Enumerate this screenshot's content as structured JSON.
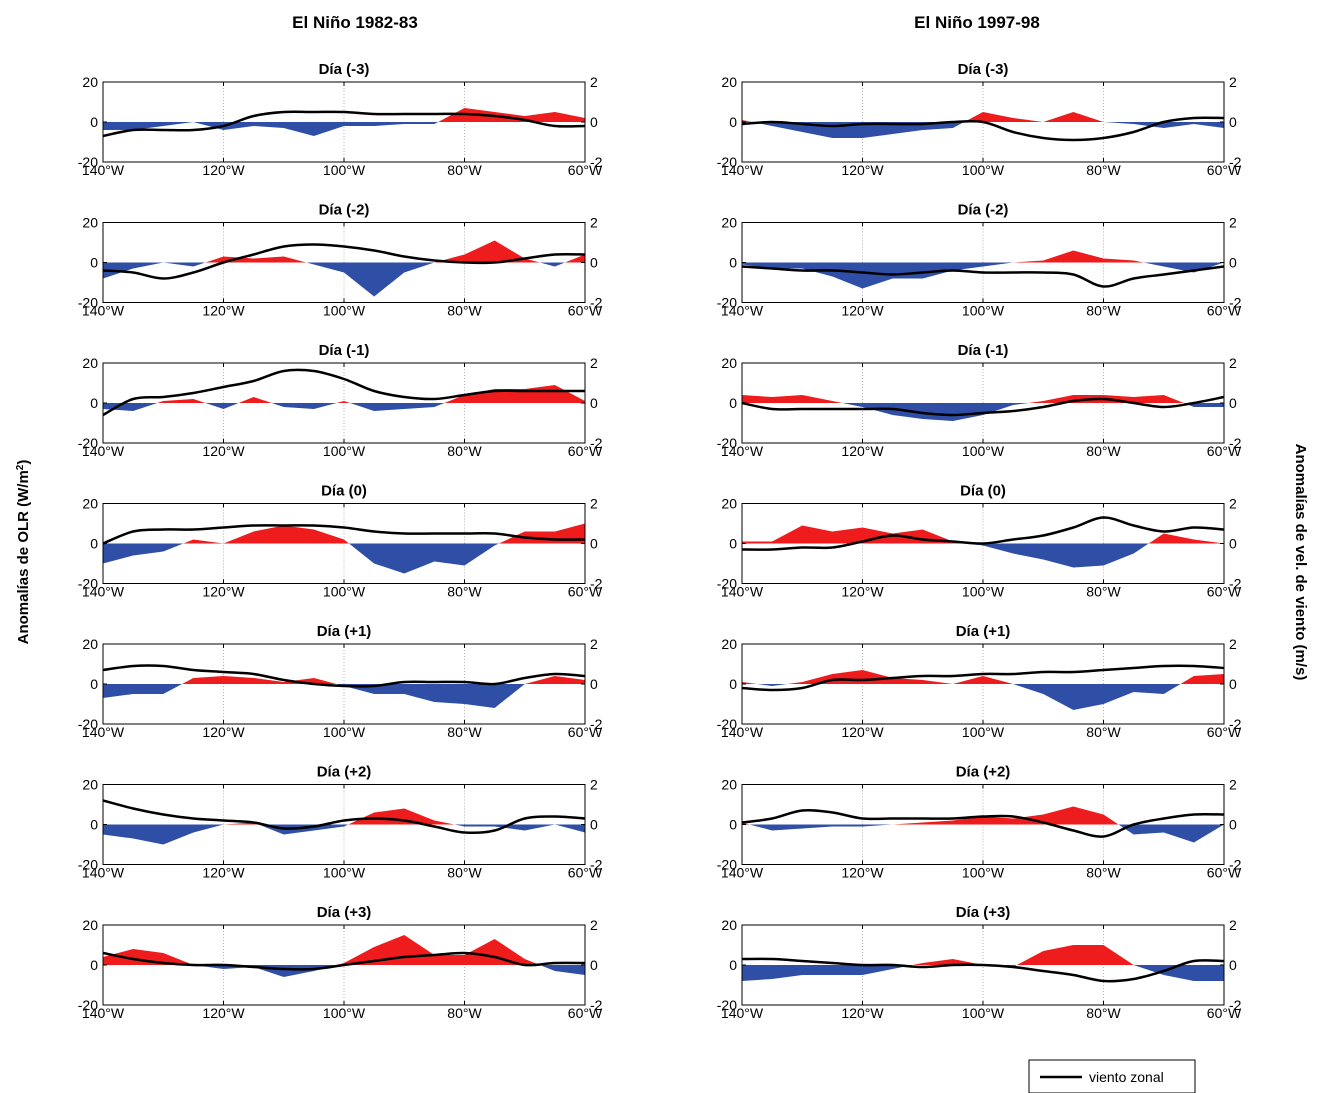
{
  "figure": {
    "left_column_title": "El Niño 1982-83",
    "right_column_title": "El Niño 1997-98",
    "left_axis_label": "Anomalías de OLR (W/m²)",
    "right_axis_label": "Anomalías de vel. de viento (m/s)",
    "legend_label": "viento zonal"
  },
  "colors": {
    "positive": "#ee1c1c",
    "negative": "#2f4ea6",
    "wind": "#000000"
  },
  "chart_data": [
    {
      "type": "area",
      "column": "El Niño 1982-83",
      "title": "Día (-3)",
      "xlim": [
        -140,
        -60
      ],
      "ylim": [
        -20,
        20
      ],
      "y2lim": [
        -2,
        2
      ],
      "xticks": [
        "140°W",
        "120°W",
        "100°W",
        "80°W",
        "60°W"
      ],
      "yticks": [
        "-20",
        "0",
        "20"
      ],
      "y2ticks": [
        "-2",
        "0",
        "2"
      ],
      "x": [
        -140,
        -135,
        -130,
        -125,
        -120,
        -115,
        -110,
        -105,
        -100,
        -95,
        -90,
        -85,
        -80,
        -75,
        -70,
        -65,
        -60
      ],
      "olr": [
        -4,
        -4,
        -2,
        0,
        -4,
        -2,
        -3,
        -7,
        -2,
        -2,
        -1,
        -1,
        7,
        5,
        3,
        5,
        2
      ],
      "wind": [
        -0.7,
        -0.4,
        -0.4,
        -0.4,
        -0.2,
        0.3,
        0.5,
        0.5,
        0.5,
        0.4,
        0.4,
        0.4,
        0.4,
        0.3,
        0.1,
        -0.2,
        -0.2
      ]
    },
    {
      "type": "area",
      "column": "El Niño 1982-83",
      "title": "Día (-2)",
      "xlim": [
        -140,
        -60
      ],
      "ylim": [
        -20,
        20
      ],
      "y2lim": [
        -2,
        2
      ],
      "xticks": [
        "140°W",
        "120°W",
        "100°W",
        "80°W",
        "60°W"
      ],
      "yticks": [
        "-20",
        "0",
        "20"
      ],
      "y2ticks": [
        "-2",
        "0",
        "2"
      ],
      "x": [
        -140,
        -135,
        -130,
        -125,
        -120,
        -115,
        -110,
        -105,
        -100,
        -95,
        -90,
        -85,
        -80,
        -75,
        -70,
        -65,
        -60
      ],
      "olr": [
        -8,
        -3,
        0,
        -2,
        3,
        2,
        3,
        -1,
        -5,
        -17,
        -5,
        0,
        4,
        11,
        2,
        -2,
        4
      ],
      "wind": [
        -0.4,
        -0.5,
        -0.8,
        -0.5,
        0.0,
        0.4,
        0.8,
        0.9,
        0.8,
        0.6,
        0.3,
        0.1,
        0.0,
        0.0,
        0.2,
        0.4,
        0.4
      ]
    },
    {
      "type": "area",
      "column": "El Niño 1982-83",
      "title": "Día (-1)",
      "xlim": [
        -140,
        -60
      ],
      "ylim": [
        -20,
        20
      ],
      "y2lim": [
        -2,
        2
      ],
      "xticks": [
        "140°W",
        "120°W",
        "100°W",
        "80°W",
        "60°W"
      ],
      "yticks": [
        "-20",
        "0",
        "20"
      ],
      "y2ticks": [
        "-2",
        "0",
        "2"
      ],
      "x": [
        -140,
        -135,
        -130,
        -125,
        -120,
        -115,
        -110,
        -105,
        -100,
        -95,
        -90,
        -85,
        -80,
        -75,
        -70,
        -65,
        -60
      ],
      "olr": [
        -3,
        -4,
        1,
        2,
        -3,
        3,
        -2,
        -3,
        1,
        -4,
        -3,
        -2,
        4,
        7,
        7,
        9,
        1
      ],
      "wind": [
        -0.6,
        0.2,
        0.3,
        0.5,
        0.8,
        1.1,
        1.6,
        1.6,
        1.2,
        0.6,
        0.3,
        0.2,
        0.4,
        0.6,
        0.6,
        0.6,
        0.6
      ]
    },
    {
      "type": "area",
      "column": "El Niño 1982-83",
      "title": "Día (0)",
      "xlim": [
        -140,
        -60
      ],
      "ylim": [
        -20,
        20
      ],
      "y2lim": [
        -2,
        2
      ],
      "xticks": [
        "140°W",
        "120°W",
        "100°W",
        "80°W",
        "60°W"
      ],
      "yticks": [
        "-20",
        "0",
        "20"
      ],
      "y2ticks": [
        "-2",
        "0",
        "2"
      ],
      "x": [
        -140,
        -135,
        -130,
        -125,
        -120,
        -115,
        -110,
        -105,
        -100,
        -95,
        -90,
        -85,
        -80,
        -75,
        -70,
        -65,
        -60
      ],
      "olr": [
        -10,
        -6,
        -4,
        2,
        0,
        6,
        9,
        7,
        2,
        -10,
        -15,
        -9,
        -11,
        -1,
        6,
        6,
        10
      ],
      "wind": [
        0.0,
        0.6,
        0.7,
        0.7,
        0.8,
        0.9,
        0.9,
        0.9,
        0.8,
        0.6,
        0.5,
        0.5,
        0.5,
        0.5,
        0.3,
        0.2,
        0.2
      ]
    },
    {
      "type": "area",
      "column": "El Niño 1982-83",
      "title": "Día (+1)",
      "xlim": [
        -140,
        -60
      ],
      "ylim": [
        -20,
        20
      ],
      "y2lim": [
        -2,
        2
      ],
      "xticks": [
        "140°W",
        "120°W",
        "100°W",
        "80°W",
        "60°W"
      ],
      "yticks": [
        "-20",
        "0",
        "20"
      ],
      "y2ticks": [
        "-2",
        "0",
        "2"
      ],
      "x": [
        -140,
        -135,
        -130,
        -125,
        -120,
        -115,
        -110,
        -105,
        -100,
        -95,
        -90,
        -85,
        -80,
        -75,
        -70,
        -65,
        -60
      ],
      "olr": [
        -7,
        -5,
        -5,
        3,
        4,
        3,
        1,
        3,
        -1,
        -5,
        -5,
        -9,
        -10,
        -12,
        0,
        4,
        2
      ],
      "wind": [
        0.7,
        0.9,
        0.9,
        0.7,
        0.6,
        0.5,
        0.2,
        0.0,
        -0.1,
        -0.1,
        0.1,
        0.1,
        0.1,
        0.0,
        0.3,
        0.5,
        0.4
      ]
    },
    {
      "type": "area",
      "column": "El Niño 1982-83",
      "title": "Día (+2)",
      "xlim": [
        -140,
        -60
      ],
      "ylim": [
        -20,
        20
      ],
      "y2lim": [
        -2,
        2
      ],
      "xticks": [
        "140°W",
        "120°W",
        "100°W",
        "80°W",
        "60°W"
      ],
      "yticks": [
        "-20",
        "0",
        "20"
      ],
      "y2ticks": [
        "-2",
        "0",
        "2"
      ],
      "x": [
        -140,
        -135,
        -130,
        -125,
        -120,
        -115,
        -110,
        -105,
        -100,
        -95,
        -90,
        -85,
        -80,
        -75,
        -70,
        -65,
        -60
      ],
      "olr": [
        -5,
        -7,
        -10,
        -4,
        0,
        1,
        -5,
        -3,
        -1,
        6,
        8,
        2,
        -1,
        -1,
        -3,
        0,
        -4
      ],
      "wind": [
        1.2,
        0.8,
        0.5,
        0.3,
        0.2,
        0.1,
        -0.2,
        -0.1,
        0.2,
        0.3,
        0.2,
        -0.1,
        -0.4,
        -0.3,
        0.3,
        0.4,
        0.3
      ]
    },
    {
      "type": "area",
      "column": "El Niño 1982-83",
      "title": "Día (+3)",
      "xlim": [
        -140,
        -60
      ],
      "ylim": [
        -20,
        20
      ],
      "y2lim": [
        -2,
        2
      ],
      "xticks": [
        "140°W",
        "120°W",
        "100°W",
        "80°W",
        "60°W"
      ],
      "yticks": [
        "-20",
        "0",
        "20"
      ],
      "y2ticks": [
        "-2",
        "0",
        "2"
      ],
      "x": [
        -140,
        -135,
        -130,
        -125,
        -120,
        -115,
        -110,
        -105,
        -100,
        -95,
        -90,
        -85,
        -80,
        -75,
        -70,
        -65,
        -60
      ],
      "olr": [
        4,
        8,
        6,
        0,
        -2,
        -1,
        -6,
        -3,
        1,
        9,
        15,
        5,
        5,
        13,
        3,
        -3,
        -5
      ],
      "wind": [
        0.6,
        0.3,
        0.1,
        0.0,
        0.0,
        -0.1,
        -0.2,
        -0.2,
        0.0,
        0.2,
        0.4,
        0.5,
        0.6,
        0.4,
        0.0,
        0.1,
        0.1
      ]
    },
    {
      "type": "area",
      "column": "El Niño 1997-98",
      "title": "Día (-3)",
      "xlim": [
        -140,
        -60
      ],
      "ylim": [
        -20,
        20
      ],
      "y2lim": [
        -2,
        2
      ],
      "xticks": [
        "140°W",
        "120°W",
        "100°W",
        "80°W",
        "60°W"
      ],
      "yticks": [
        "-20",
        "0",
        "20"
      ],
      "y2ticks": [
        "-2",
        "0",
        "2"
      ],
      "x": [
        -140,
        -135,
        -130,
        -125,
        -120,
        -115,
        -110,
        -105,
        -100,
        -95,
        -90,
        -85,
        -80,
        -75,
        -70,
        -65,
        -60
      ],
      "olr": [
        1,
        -2,
        -5,
        -8,
        -8,
        -6,
        -4,
        -3,
        5,
        2,
        0,
        5,
        0,
        -1,
        -3,
        -1,
        -3
      ],
      "wind": [
        -0.1,
        0.0,
        -0.1,
        -0.2,
        -0.1,
        -0.1,
        -0.1,
        0.0,
        0.0,
        -0.5,
        -0.8,
        -0.9,
        -0.8,
        -0.5,
        0.0,
        0.2,
        0.2
      ]
    },
    {
      "type": "area",
      "column": "El Niño 1997-98",
      "title": "Día (-2)",
      "xlim": [
        -140,
        -60
      ],
      "ylim": [
        -20,
        20
      ],
      "y2lim": [
        -2,
        2
      ],
      "xticks": [
        "140°W",
        "120°W",
        "100°W",
        "80°W",
        "60°W"
      ],
      "yticks": [
        "-20",
        "0",
        "20"
      ],
      "y2ticks": [
        "-2",
        "0",
        "2"
      ],
      "x": [
        -140,
        -135,
        -130,
        -125,
        -120,
        -115,
        -110,
        -105,
        -100,
        -95,
        -90,
        -85,
        -80,
        -75,
        -70,
        -65,
        -60
      ],
      "olr": [
        -1,
        -3,
        -3,
        -7,
        -13,
        -8,
        -8,
        -4,
        -2,
        0,
        1,
        6,
        2,
        1,
        -2,
        -5,
        0
      ],
      "wind": [
        -0.2,
        -0.3,
        -0.4,
        -0.4,
        -0.5,
        -0.6,
        -0.5,
        -0.4,
        -0.5,
        -0.5,
        -0.5,
        -0.6,
        -1.2,
        -0.8,
        -0.6,
        -0.4,
        -0.2
      ]
    },
    {
      "type": "area",
      "column": "El Niño 1997-98",
      "title": "Día (-1)",
      "xlim": [
        -140,
        -60
      ],
      "ylim": [
        -20,
        20
      ],
      "y2lim": [
        -2,
        2
      ],
      "xticks": [
        "140°W",
        "120°W",
        "100°W",
        "80°W",
        "60°W"
      ],
      "yticks": [
        "-20",
        "0",
        "20"
      ],
      "y2ticks": [
        "-2",
        "0",
        "2"
      ],
      "x": [
        -140,
        -135,
        -130,
        -125,
        -120,
        -115,
        -110,
        -105,
        -100,
        -95,
        -90,
        -85,
        -80,
        -75,
        -70,
        -65,
        -60
      ],
      "olr": [
        4,
        3,
        4,
        1,
        -2,
        -6,
        -8,
        -9,
        -6,
        -1,
        1,
        4,
        4,
        3,
        4,
        -2,
        -2
      ],
      "wind": [
        0.0,
        -0.3,
        -0.3,
        -0.3,
        -0.3,
        -0.3,
        -0.5,
        -0.6,
        -0.5,
        -0.4,
        -0.2,
        0.1,
        0.2,
        0.0,
        -0.2,
        0.0,
        0.3
      ]
    },
    {
      "type": "area",
      "column": "El Niño 1997-98",
      "title": "Día (0)",
      "xlim": [
        -140,
        -60
      ],
      "ylim": [
        -20,
        20
      ],
      "y2lim": [
        -2,
        2
      ],
      "xticks": [
        "140°W",
        "120°W",
        "100°W",
        "80°W",
        "60°W"
      ],
      "yticks": [
        "-20",
        "0",
        "20"
      ],
      "y2ticks": [
        "-2",
        "0",
        "2"
      ],
      "x": [
        -140,
        -135,
        -130,
        -125,
        -120,
        -115,
        -110,
        -105,
        -100,
        -95,
        -90,
        -85,
        -80,
        -75,
        -70,
        -65,
        -60
      ],
      "olr": [
        1,
        1,
        9,
        6,
        8,
        5,
        7,
        1,
        -1,
        -5,
        -8,
        -12,
        -11,
        -5,
        5,
        2,
        0
      ],
      "wind": [
        -0.3,
        -0.3,
        -0.2,
        -0.2,
        0.1,
        0.4,
        0.2,
        0.1,
        0.0,
        0.2,
        0.4,
        0.8,
        1.3,
        0.9,
        0.6,
        0.8,
        0.7
      ]
    },
    {
      "type": "area",
      "column": "El Niño 1997-98",
      "title": "Día (+1)",
      "xlim": [
        -140,
        -60
      ],
      "ylim": [
        -20,
        20
      ],
      "y2lim": [
        -2,
        2
      ],
      "xticks": [
        "140°W",
        "120°W",
        "100°W",
        "80°W",
        "60°W"
      ],
      "yticks": [
        "-20",
        "0",
        "20"
      ],
      "y2ticks": [
        "-2",
        "0",
        "2"
      ],
      "x": [
        -140,
        -135,
        -130,
        -125,
        -120,
        -115,
        -110,
        -105,
        -100,
        -95,
        -90,
        -85,
        -80,
        -75,
        -70,
        -65,
        -60
      ],
      "olr": [
        1,
        -1,
        1,
        5,
        7,
        3,
        2,
        0,
        4,
        0,
        -5,
        -13,
        -10,
        -4,
        -5,
        4,
        5
      ],
      "wind": [
        -0.2,
        -0.3,
        -0.2,
        0.2,
        0.2,
        0.3,
        0.4,
        0.4,
        0.5,
        0.5,
        0.6,
        0.6,
        0.7,
        0.8,
        0.9,
        0.9,
        0.8
      ]
    },
    {
      "type": "area",
      "column": "El Niño 1997-98",
      "title": "Día (+2)",
      "xlim": [
        -140,
        -60
      ],
      "ylim": [
        -20,
        20
      ],
      "y2lim": [
        -2,
        2
      ],
      "xticks": [
        "140°W",
        "120°W",
        "100°W",
        "80°W",
        "60°W"
      ],
      "yticks": [
        "-20",
        "0",
        "20"
      ],
      "y2ticks": [
        "-2",
        "0",
        "2"
      ],
      "x": [
        -140,
        -135,
        -130,
        -125,
        -120,
        -115,
        -110,
        -105,
        -100,
        -95,
        -90,
        -85,
        -80,
        -75,
        -70,
        -65,
        -60
      ],
      "olr": [
        1,
        -3,
        -2,
        -1,
        -1,
        0,
        1,
        2,
        4,
        3,
        5,
        9,
        5,
        -5,
        -4,
        -9,
        0
      ],
      "wind": [
        0.1,
        0.3,
        0.7,
        0.6,
        0.3,
        0.3,
        0.3,
        0.3,
        0.4,
        0.4,
        0.1,
        -0.3,
        -0.6,
        0.0,
        0.3,
        0.5,
        0.5
      ]
    },
    {
      "type": "area",
      "column": "El Niño 1997-98",
      "title": "Día (+3)",
      "xlim": [
        -140,
        -60
      ],
      "ylim": [
        -20,
        20
      ],
      "y2lim": [
        -2,
        2
      ],
      "xticks": [
        "140°W",
        "120°W",
        "100°W",
        "80°W",
        "60°W"
      ],
      "yticks": [
        "-20",
        "0",
        "20"
      ],
      "y2ticks": [
        "-2",
        "0",
        "2"
      ],
      "x": [
        -140,
        -135,
        -130,
        -125,
        -120,
        -115,
        -110,
        -105,
        -100,
        -95,
        -90,
        -85,
        -80,
        -75,
        -70,
        -65,
        -60
      ],
      "olr": [
        -8,
        -7,
        -5,
        -5,
        -5,
        -2,
        1,
        3,
        0,
        -1,
        7,
        10,
        10,
        0,
        -5,
        -8,
        -8
      ],
      "wind": [
        0.3,
        0.3,
        0.2,
        0.1,
        0.0,
        0.0,
        -0.1,
        0.0,
        0.0,
        -0.1,
        -0.3,
        -0.5,
        -0.8,
        -0.7,
        -0.3,
        0.2,
        0.2
      ]
    }
  ]
}
